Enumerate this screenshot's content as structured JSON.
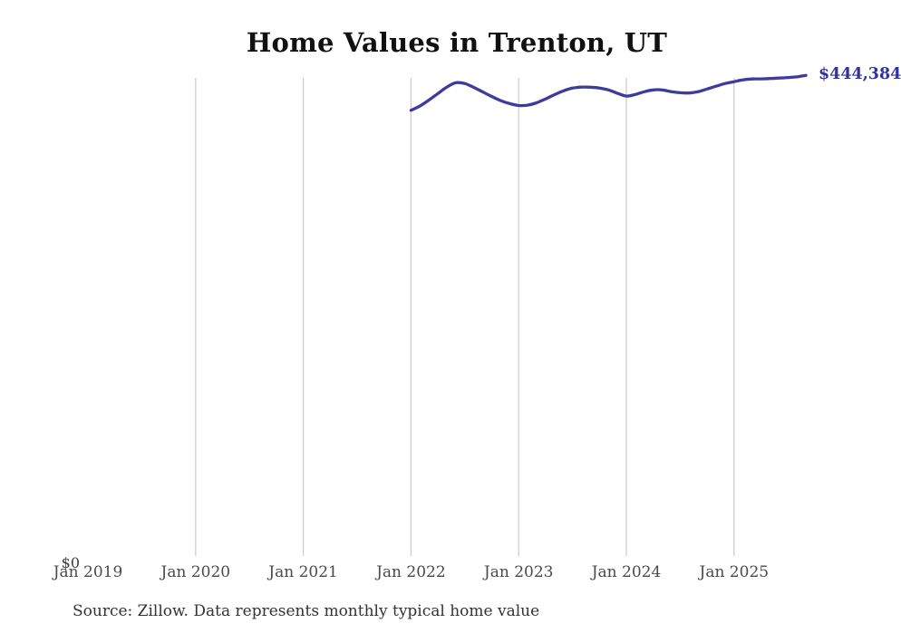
{
  "chart_data": {
    "type": "line",
    "title": "Home Values in Trenton, UT",
    "source": "Source: Zillow. Data represents monthly typical home value",
    "y_zero_label": "$0",
    "end_label": "$444,384",
    "ylim": [
      0,
      442000
    ],
    "grid": "vertical",
    "colors": {
      "line": "#3d3b9e",
      "end_label": "#32329b",
      "gridline": "#cccccc",
      "tick_text": "#4a4a4a"
    },
    "x_ticks": [
      {
        "label": "Jan 2019",
        "month_index": 0,
        "gridline": false
      },
      {
        "label": "Jan 2020",
        "month_index": 12,
        "gridline": true
      },
      {
        "label": "Jan 2021",
        "month_index": 24,
        "gridline": true
      },
      {
        "label": "Jan 2022",
        "month_index": 36,
        "gridline": true
      },
      {
        "label": "Jan 2023",
        "month_index": 48,
        "gridline": true
      },
      {
        "label": "Jan 2024",
        "month_index": 60,
        "gridline": true
      },
      {
        "label": "Jan 2025",
        "month_index": 72,
        "gridline": true
      }
    ],
    "series": [
      {
        "name": "Monthly typical home value",
        "points": [
          [
            "2022-01",
            412000
          ],
          [
            "2022-02",
            416000
          ],
          [
            "2022-03",
            421500
          ],
          [
            "2022-04",
            427500
          ],
          [
            "2022-05",
            433500
          ],
          [
            "2022-06",
            437500
          ],
          [
            "2022-07",
            436800
          ],
          [
            "2022-08",
            433200
          ],
          [
            "2022-09",
            429000
          ],
          [
            "2022-10",
            424800
          ],
          [
            "2022-11",
            421000
          ],
          [
            "2022-12",
            418200
          ],
          [
            "2023-01",
            416500
          ],
          [
            "2023-02",
            416800
          ],
          [
            "2023-03",
            419000
          ],
          [
            "2023-04",
            422500
          ],
          [
            "2023-05",
            426500
          ],
          [
            "2023-06",
            430000
          ],
          [
            "2023-07",
            432500
          ],
          [
            "2023-08",
            433500
          ],
          [
            "2023-09",
            433400
          ],
          [
            "2023-10",
            432600
          ],
          [
            "2023-11",
            430900
          ],
          [
            "2023-12",
            427800
          ],
          [
            "2024-01",
            425200
          ],
          [
            "2024-02",
            426700
          ],
          [
            "2024-03",
            429200
          ],
          [
            "2024-04",
            430900
          ],
          [
            "2024-05",
            430900
          ],
          [
            "2024-06",
            429300
          ],
          [
            "2024-07",
            428300
          ],
          [
            "2024-08",
            428000
          ],
          [
            "2024-09",
            429200
          ],
          [
            "2024-10",
            431700
          ],
          [
            "2024-11",
            434300
          ],
          [
            "2024-12",
            436800
          ],
          [
            "2025-01",
            438500
          ],
          [
            "2025-02",
            440200
          ],
          [
            "2025-03",
            441000
          ],
          [
            "2025-04",
            441100
          ],
          [
            "2025-05",
            441400
          ],
          [
            "2025-06",
            441800
          ],
          [
            "2025-07",
            442300
          ],
          [
            "2025-08",
            442900
          ],
          [
            "2025-09",
            444384
          ]
        ]
      }
    ]
  }
}
